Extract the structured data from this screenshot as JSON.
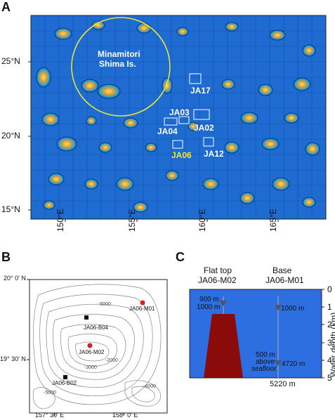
{
  "panel_a": {
    "letter": "A",
    "lat_labels": [
      "25°N",
      "20°N",
      "15°N"
    ],
    "lon_labels": [
      "150°E",
      "155°E",
      "160°E",
      "165°E"
    ],
    "region_label_line1": "Minamitori",
    "region_label_line2": "Shima Is.",
    "sites": [
      "JA17",
      "JA03",
      "JA02",
      "JA04",
      "JA06",
      "JA12"
    ],
    "highlight_site": "JA06",
    "colors": {
      "ocean": "#1f6fd6",
      "circle": "#e8e43a",
      "highlight": "#f2ea2a",
      "seamount": "#f0a020"
    }
  },
  "panel_b": {
    "letter": "B",
    "lat_labels": [
      "20° 0' N",
      "19° 30' N"
    ],
    "lon_labels": [
      "157° 30' E",
      "158° 0' E"
    ],
    "stations": [
      "JA06-M01",
      "JA06-B04",
      "JA06-M02",
      "JA06-B02"
    ],
    "contour_labels": [
      "-5000",
      "-2000",
      "-3000",
      "-4000",
      "-5000"
    ],
    "colors": {
      "mooring": "#d62020",
      "bottom": "#111111"
    }
  },
  "panel_c": {
    "letter": "C",
    "col1_line1": "Flat top",
    "col1_line2": "JA06-M02",
    "col2_line1": "Base",
    "col2_line2": "JA06-M01",
    "depth_ticks": [
      "0",
      "1",
      "2",
      "3",
      "4",
      "5"
    ],
    "axis_label": "Water depth (km)",
    "top_depth_1": "900 m",
    "top_depth_2": "1000 m",
    "base_depth_1": "1000 m",
    "base_depth_2": "4720 m",
    "above_1": "500 m",
    "above_2": "above",
    "above_3": "seafloor",
    "bottom_depth": "5220 m",
    "colors": {
      "water": "#2d6ee0",
      "seamount": "#8b0a0a"
    }
  }
}
